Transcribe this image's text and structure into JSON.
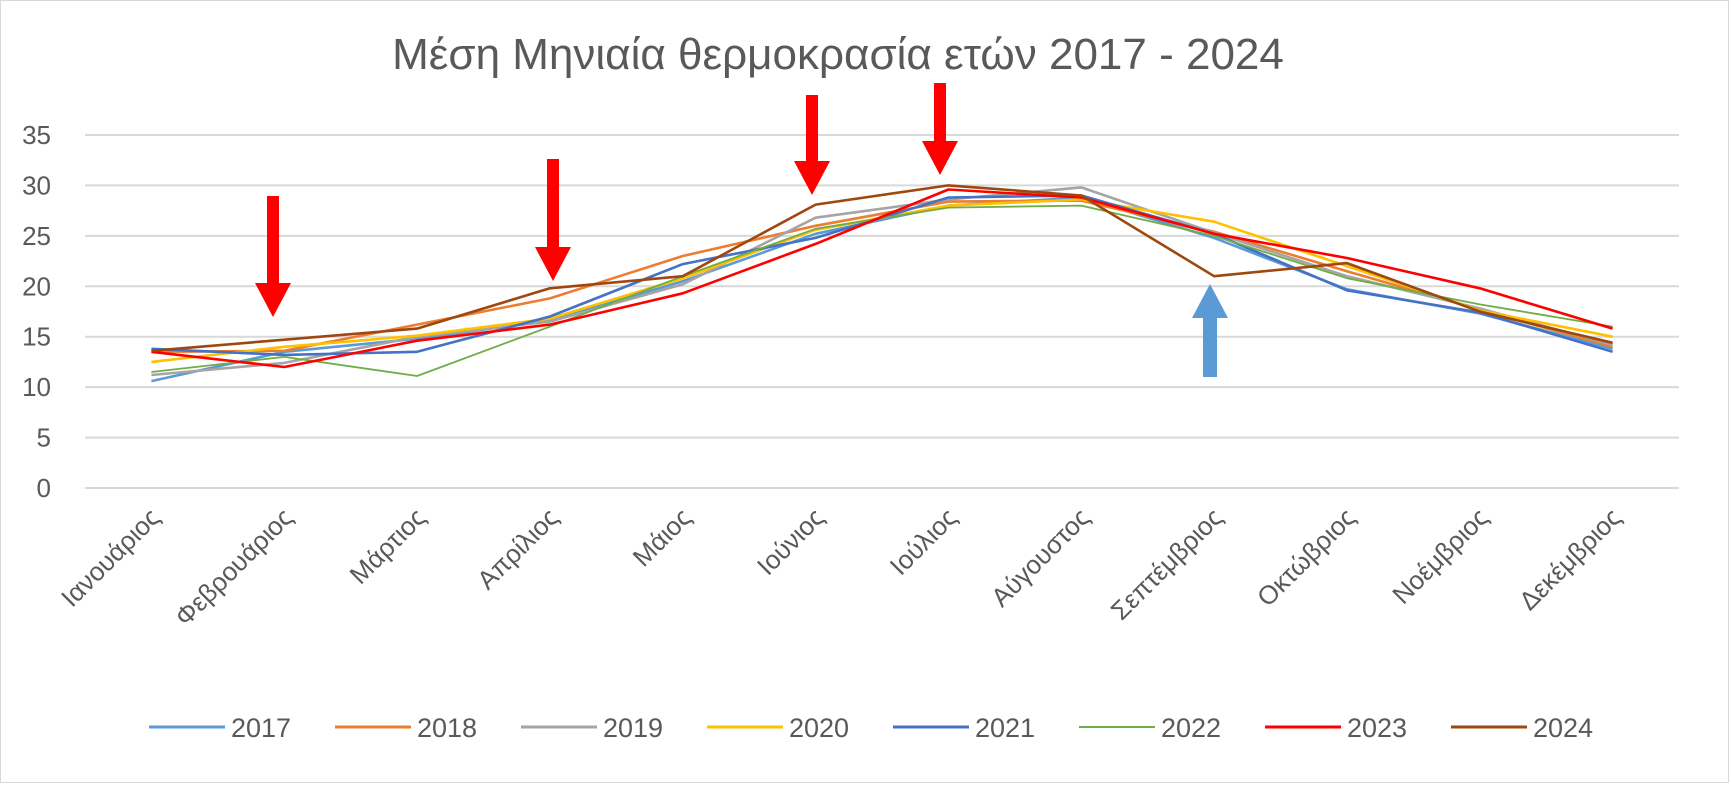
{
  "chart_data": {
    "type": "line",
    "title": "Μέση Μηνιαία θερμοκρασία ετών 2017 - 2024",
    "xlabel": "",
    "ylabel": "",
    "ylim": [
      0,
      35
    ],
    "yticks": [
      "0",
      "5",
      "10",
      "15",
      "20",
      "25",
      "30",
      "35"
    ],
    "grid": true,
    "legend_position": "bottom",
    "categories": [
      "Ιανουάριος",
      "Φεβρουάριος",
      "Μάρτιος",
      "Απρίλιος",
      "Μάιος",
      "Ιούνιος",
      "Ιούλιος",
      "Αύγουστος",
      "Σεπτέμβριος",
      "Οκτώβριος",
      "Νοέμβριος",
      "Δεκέμβριος"
    ],
    "series": [
      {
        "name": "2017",
        "color": "#5b9bd5",
        "values": [
          10.6,
          13.5,
          14.8,
          16.6,
          20.5,
          25.2,
          28.0,
          28.8,
          24.8,
          19.7,
          17.3,
          13.8
        ]
      },
      {
        "name": "2018",
        "color": "#ed7d31",
        "values": [
          13.5,
          13.6,
          16.2,
          18.8,
          23.0,
          26.0,
          28.4,
          28.5,
          25.4,
          21.5,
          17.7,
          14.0
        ]
      },
      {
        "name": "2019",
        "color": "#a5a5a5",
        "values": [
          11.2,
          12.4,
          15.0,
          16.5,
          20.2,
          26.8,
          28.6,
          29.8,
          25.3,
          21.0,
          17.8,
          14.2
        ]
      },
      {
        "name": "2020",
        "color": "#ffc000",
        "values": [
          12.5,
          14.0,
          15.1,
          16.8,
          20.8,
          25.6,
          28.0,
          28.6,
          26.4,
          22.0,
          17.6,
          15.0
        ]
      },
      {
        "name": "2021",
        "color": "#4472c4",
        "values": [
          13.8,
          13.2,
          13.5,
          17.0,
          22.2,
          24.8,
          28.8,
          29.0,
          25.2,
          19.6,
          17.4,
          13.5
        ]
      },
      {
        "name": "2022",
        "color": "#70ad47",
        "values": [
          11.5,
          13.0,
          11.1,
          16.0,
          21.0,
          25.7,
          27.8,
          28.0,
          25.0,
          20.8,
          18.2,
          16.0
        ]
      },
      {
        "name": "2023",
        "color": "#ff0000",
        "values": [
          13.5,
          12.0,
          14.6,
          16.2,
          19.3,
          24.2,
          29.6,
          28.8,
          25.2,
          22.8,
          19.8,
          15.8
        ]
      },
      {
        "name": "2024",
        "color": "#9e480e",
        "values": [
          13.6,
          14.7,
          15.8,
          19.8,
          21.0,
          28.1,
          30.0,
          29.0,
          21.0,
          22.3,
          17.5,
          14.4
        ]
      }
    ]
  },
  "arrows": {
    "red_color": "#ff0000",
    "blue_color": "#5b9bd5"
  }
}
